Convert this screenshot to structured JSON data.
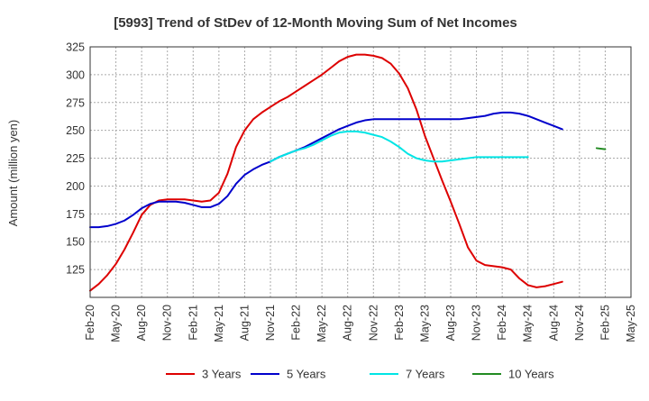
{
  "chart_data": {
    "type": "line",
    "title": "[5993]  Trend of StDev of 12-Month Moving Sum of Net Incomes",
    "xlabel": "",
    "ylabel": "Amount (million yen)",
    "ylim": [
      100,
      325
    ],
    "yticks": [
      125,
      150,
      175,
      200,
      225,
      250,
      275,
      300,
      325
    ],
    "x_start": "2020-02",
    "x_end": "2025-05",
    "xtick_labels": [
      "Feb-20",
      "May-20",
      "Aug-20",
      "Nov-20",
      "Feb-21",
      "May-21",
      "Aug-21",
      "Nov-21",
      "Feb-22",
      "May-22",
      "Aug-22",
      "Nov-22",
      "Feb-23",
      "May-23",
      "Aug-23",
      "Nov-23",
      "Feb-24",
      "May-24",
      "Aug-24",
      "Nov-24",
      "Feb-25",
      "May-25"
    ],
    "grid": true,
    "legend_position": "bottom",
    "series": [
      {
        "name": "3 Years",
        "color": "#dd0000",
        "start": "2020-02",
        "values": [
          106,
          112,
          120,
          130,
          143,
          158,
          174,
          183,
          187,
          188,
          188,
          188,
          187,
          186,
          187,
          194,
          211,
          235,
          250,
          260,
          266,
          271,
          276,
          280,
          285,
          290,
          295,
          300,
          306,
          312,
          316,
          318,
          318,
          317,
          315,
          310,
          301,
          288,
          269,
          245,
          225,
          205,
          186,
          166,
          145,
          133,
          129,
          128,
          127,
          125,
          117,
          111,
          109,
          110,
          112,
          114
        ]
      },
      {
        "name": "5 Years",
        "color": "#0000cc",
        "start": "2020-02",
        "values": [
          163,
          163,
          164,
          166,
          169,
          174,
          180,
          184,
          186,
          186,
          186,
          185,
          183,
          181,
          181,
          184,
          191,
          202,
          210,
          215,
          219,
          222,
          226,
          229,
          232,
          235,
          239,
          243,
          247,
          251,
          254,
          257,
          259,
          260,
          260,
          260,
          260,
          260,
          260,
          260,
          260,
          260,
          260,
          260,
          261,
          262,
          263,
          265,
          266,
          266,
          265,
          263,
          260,
          257,
          254,
          251
        ]
      },
      {
        "name": "7 Years",
        "color": "#00e5e5",
        "start": "2021-11",
        "values": [
          222,
          226,
          229,
          232,
          234,
          237,
          241,
          245,
          248,
          249,
          249,
          248,
          246,
          244,
          240,
          235,
          229,
          225,
          223,
          222,
          222,
          223,
          224,
          225,
          226,
          226,
          226,
          226,
          226,
          226,
          226
        ]
      },
      {
        "name": "10 Years",
        "color": "#228b22",
        "start": "2025-01",
        "values": [
          234,
          233
        ]
      }
    ]
  }
}
